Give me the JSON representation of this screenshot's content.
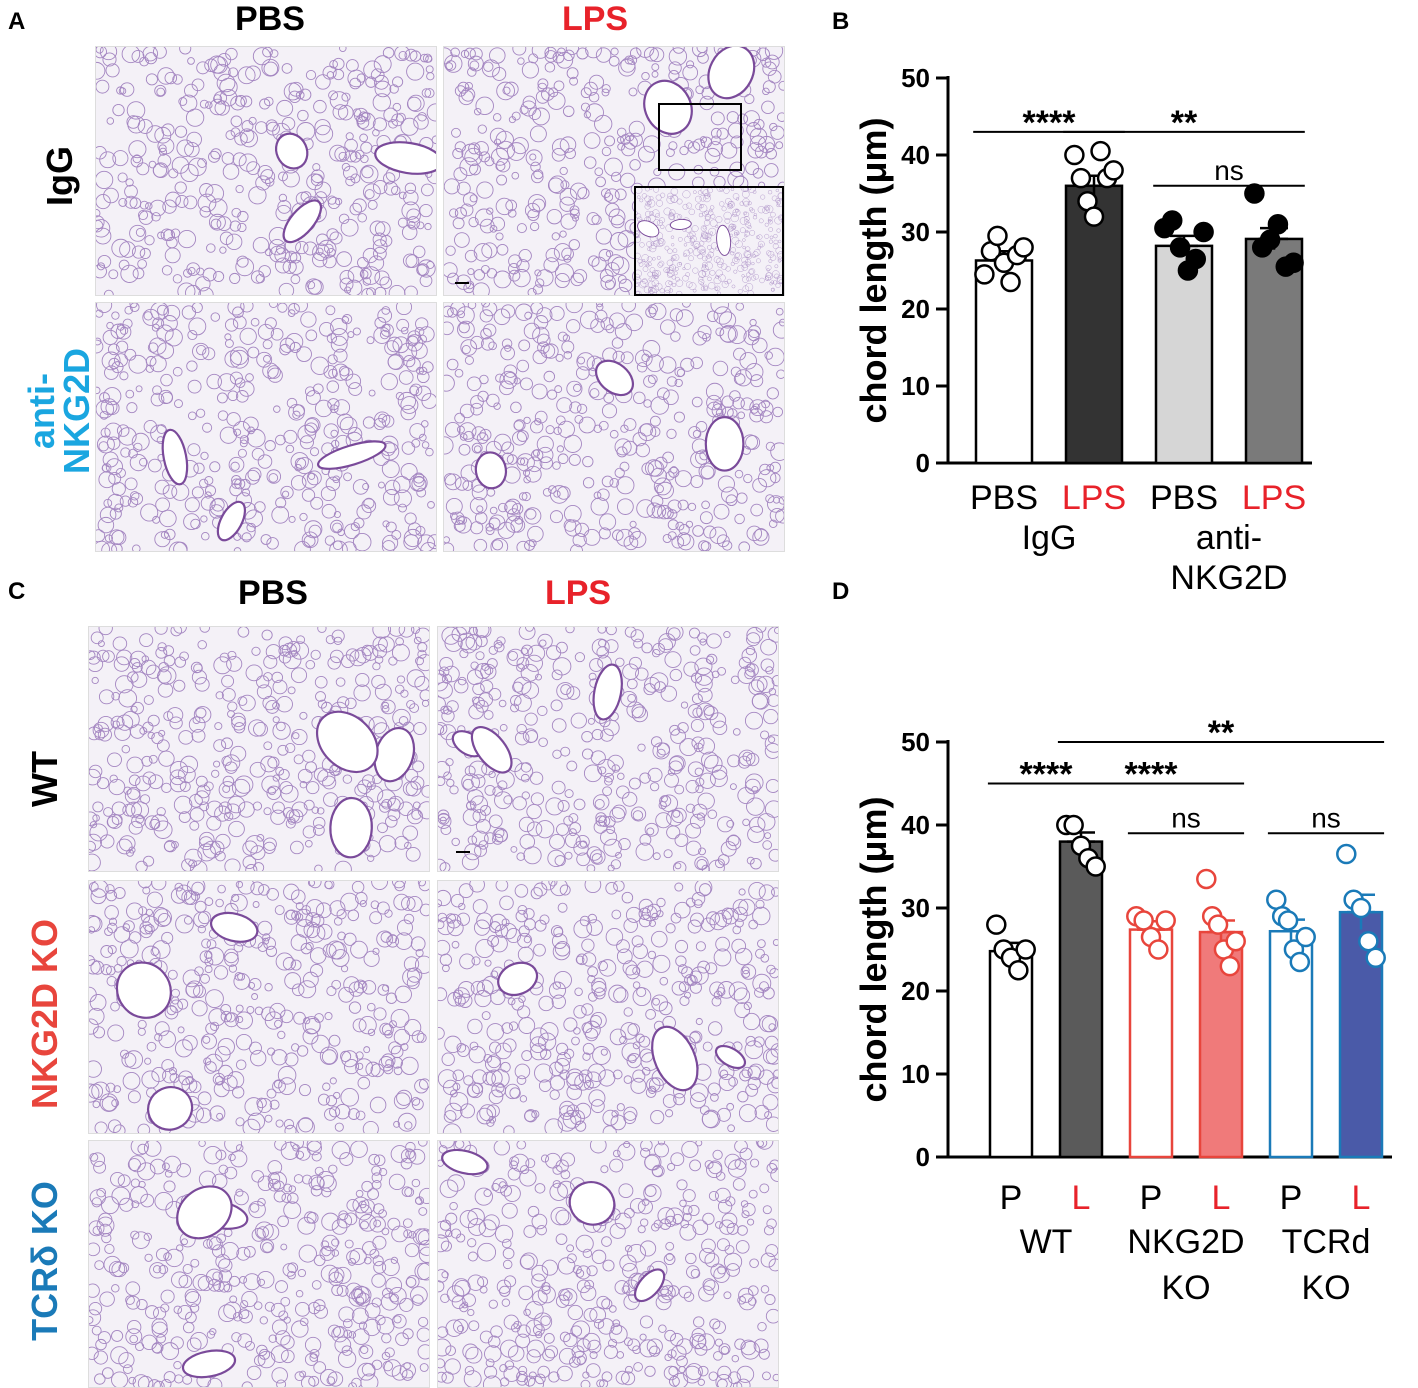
{
  "panels": {
    "A": {
      "letter": "A",
      "columns": [
        "PBS",
        "LPS"
      ],
      "rows": [
        {
          "label": "IgG",
          "color": "#000000"
        },
        {
          "label1": "anti-",
          "label2": "NKG2D",
          "color": "#1aa6e0"
        }
      ]
    },
    "C": {
      "letter": "C",
      "columns": [
        "PBS",
        "LPS"
      ],
      "rows": [
        {
          "label": "WT",
          "color": "#000000"
        },
        {
          "label": "NKG2D KO",
          "color": "#e8453c"
        },
        {
          "label": "TCRδ KO",
          "color": "#1a7ab8"
        }
      ]
    }
  },
  "colors": {
    "lps": "#e8222a",
    "tissue": "#8a63b0",
    "red": "#e8453c",
    "blue": "#1a7ab8"
  },
  "chart_data": [
    {
      "panel": "B",
      "type": "bar",
      "ylabel": "chord length (μm)",
      "ylim": [
        0,
        50
      ],
      "yticks": [
        0,
        10,
        20,
        30,
        40,
        50
      ],
      "categories": [
        "PBS",
        "LPS",
        "PBS",
        "LPS"
      ],
      "category_colors": [
        "#000000",
        "#e8222a",
        "#000000",
        "#e8222a"
      ],
      "groups": [
        "IgG",
        "anti-",
        "NKG2D"
      ],
      "bars": [
        {
          "value": 26.3,
          "sem": 1.2,
          "fill": "#ffffff",
          "points": [
            24.5,
            27.5,
            29.5,
            26,
            23.5,
            27,
            28
          ]
        },
        {
          "value": 36.0,
          "sem": 1.3,
          "fill": "#333333",
          "points": [
            40,
            37,
            34,
            32,
            40.5,
            37,
            38
          ]
        },
        {
          "value": 28.2,
          "sem": 1.3,
          "fill": "#d6d6d6",
          "points": [
            30.5,
            31.5,
            28,
            25,
            26.5,
            30
          ]
        },
        {
          "value": 29.1,
          "sem": 1.4,
          "fill": "#7a7a7a",
          "points": [
            35,
            28,
            29,
            31,
            25.5,
            26
          ]
        }
      ],
      "significance": [
        {
          "label": "****",
          "from": 0,
          "to": 1,
          "y": 43
        },
        {
          "label": "**",
          "from": 1,
          "to": 3,
          "y": 43
        },
        {
          "label": "ns",
          "from": 2,
          "to": 3,
          "y": 36
        }
      ]
    },
    {
      "panel": "D",
      "type": "bar",
      "ylabel": "chord length (μm)",
      "ylim": [
        0,
        50
      ],
      "yticks": [
        0,
        10,
        20,
        30,
        40,
        50
      ],
      "categories": [
        "P",
        "L",
        "P",
        "L",
        "P",
        "L"
      ],
      "category_colors": [
        "#000000",
        "#e8222a",
        "#000000",
        "#e8222a",
        "#000000",
        "#e8222a"
      ],
      "groups": [
        [
          "WT"
        ],
        [
          "NKG2D",
          "KO"
        ],
        [
          "TCRd",
          "KO"
        ]
      ],
      "bars": [
        {
          "value": 24.8,
          "sem": 1.0,
          "fill": "#ffffff",
          "stroke": "#000000",
          "points": [
            28,
            25,
            24,
            22.5,
            25
          ]
        },
        {
          "value": 38.0,
          "sem": 1.1,
          "fill": "#5a5a5a",
          "stroke": "#000000",
          "points": [
            40,
            40,
            37.5,
            36,
            35
          ]
        },
        {
          "value": 27.4,
          "sem": 1.0,
          "fill": "#ffffff",
          "stroke": "#e8453c",
          "points": [
            29,
            28.5,
            26.5,
            25,
            28.5
          ]
        },
        {
          "value": 27.1,
          "sem": 1.4,
          "fill": "#f07a7a",
          "stroke": "#e8453c",
          "points": [
            33.5,
            29,
            28,
            25,
            23,
            26
          ]
        },
        {
          "value": 27.2,
          "sem": 1.4,
          "fill": "#ffffff",
          "stroke": "#1a7ab8",
          "points": [
            31,
            29,
            28.5,
            25,
            23.5,
            26.5
          ]
        },
        {
          "value": 29.5,
          "sem": 2.1,
          "fill": "#4a5aa8",
          "stroke": "#1a7ab8",
          "points": [
            36.5,
            31,
            30,
            26,
            24
          ]
        }
      ],
      "significance": [
        {
          "label": "****",
          "from": 0,
          "to": 1,
          "y": 45
        },
        {
          "label": "****",
          "from": 1,
          "to": 3,
          "y": 45
        },
        {
          "label": "**",
          "from": 1,
          "to": 5,
          "y": 50
        },
        {
          "label": "ns",
          "from": 2,
          "to": 3,
          "y": 39
        },
        {
          "label": "ns",
          "from": 4,
          "to": 5,
          "y": 39
        }
      ]
    }
  ]
}
